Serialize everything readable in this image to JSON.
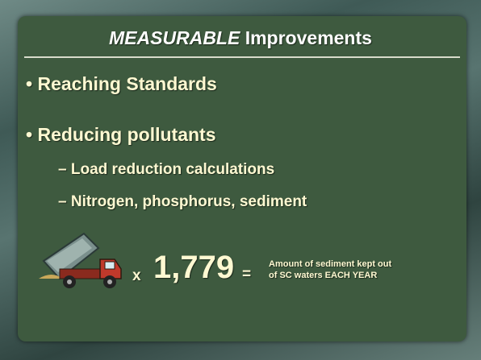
{
  "title": {
    "emphasis": "MEASURABLE",
    "rest": " Improvements"
  },
  "bullets": [
    {
      "text": "Reaching Standards"
    },
    {
      "text": "Reducing pollutants",
      "subitems": [
        "Load reduction calculations",
        "Nitrogen, phosphorus, sediment"
      ]
    }
  ],
  "equation": {
    "operator": "x",
    "factor": "1,779",
    "equals": "=",
    "caption": [
      "Amount of sediment kept out",
      "of SC waters EACH YEAR"
    ]
  }
}
